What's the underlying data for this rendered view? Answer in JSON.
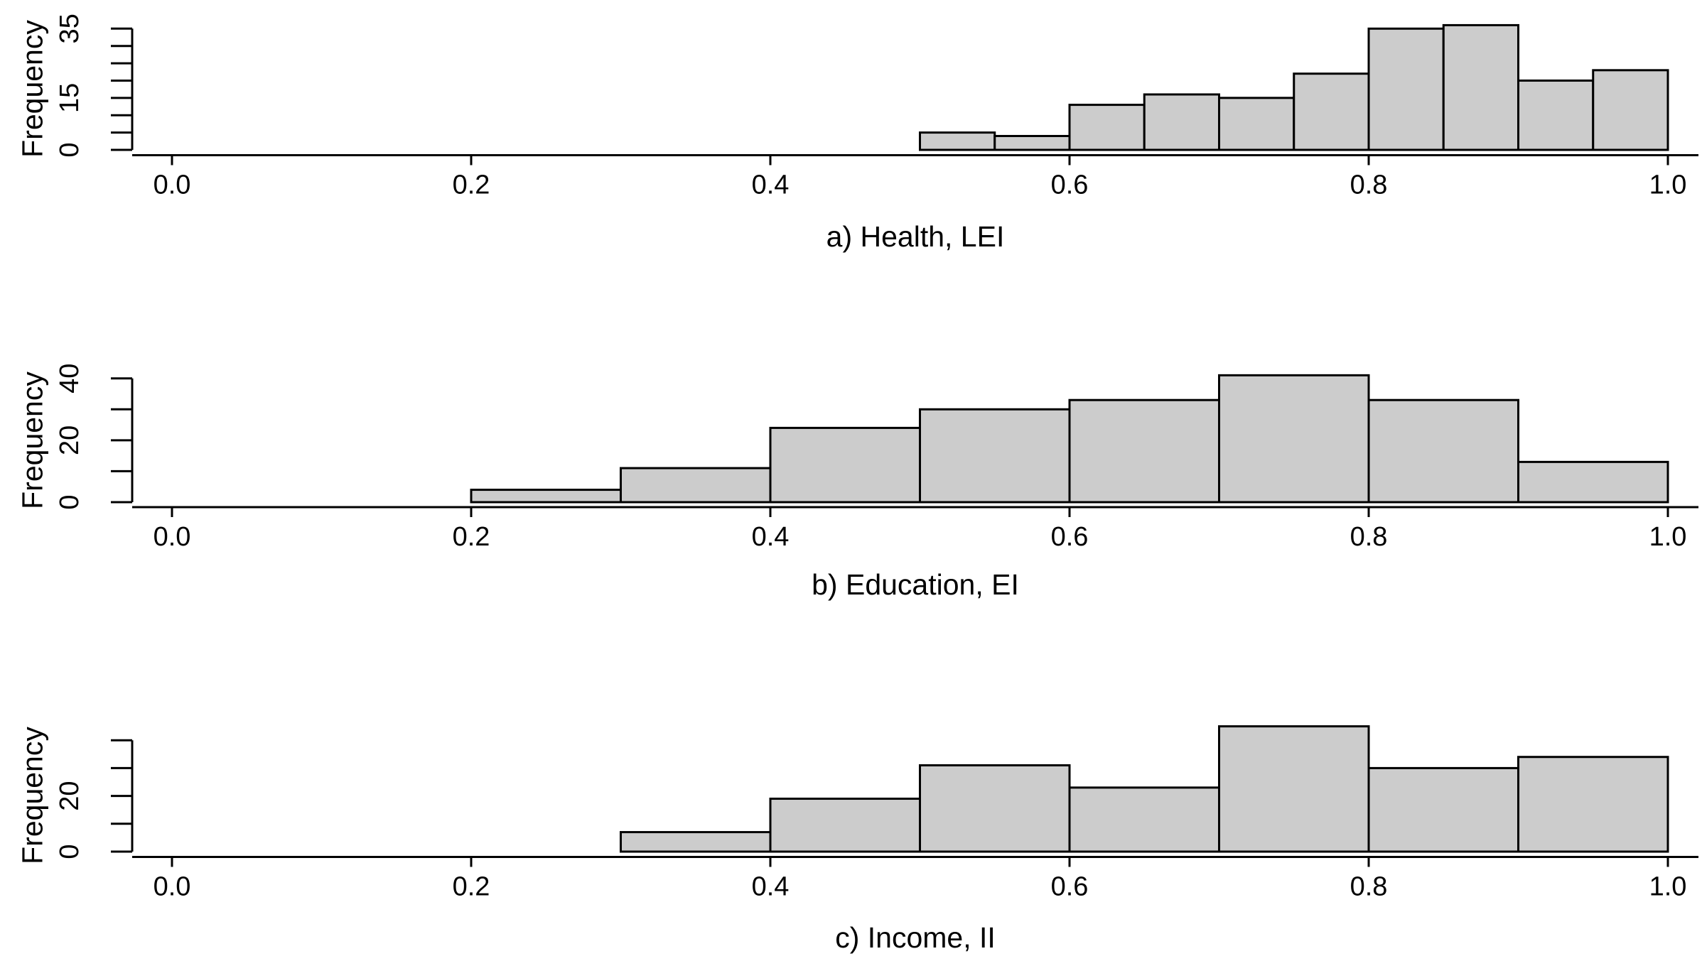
{
  "figure": {
    "background_color": "#ffffff",
    "bar_fill_color": "#cccccc",
    "bar_border_color": "#000000",
    "axis_color": "#000000"
  },
  "chart_data": [
    {
      "type": "bar",
      "subtype": "histogram",
      "title": "a) Health, LEI",
      "xlabel": "",
      "ylabel": "Frequency",
      "bin_start": 0.5,
      "bin_width": 0.05,
      "bin_edges": [
        0.5,
        0.55,
        0.6,
        0.65,
        0.7,
        0.75,
        0.8,
        0.85,
        0.9,
        0.95,
        1.0
      ],
      "values": [
        5,
        4,
        13,
        16,
        15,
        22,
        35,
        36,
        20,
        23
      ],
      "xlim": [
        0.0,
        1.0
      ],
      "ylim": [
        0,
        36
      ],
      "x_ticks": [
        0.0,
        0.2,
        0.4,
        0.6,
        0.8,
        1.0
      ],
      "x_tick_labels": [
        "0.0",
        "0.2",
        "0.4",
        "0.6",
        "0.8",
        "1.0"
      ],
      "y_ticks": [
        0,
        5,
        10,
        15,
        20,
        25,
        30,
        35
      ],
      "y_tick_labels": [
        "0",
        "",
        "",
        "15",
        "",
        "",
        "",
        "35"
      ],
      "grid": "off",
      "legend": "none"
    },
    {
      "type": "bar",
      "subtype": "histogram",
      "title": "b) Education, EI",
      "xlabel": "",
      "ylabel": "Frequency",
      "bin_start": 0.2,
      "bin_width": 0.1,
      "bin_edges": [
        0.2,
        0.3,
        0.4,
        0.5,
        0.6,
        0.7,
        0.8,
        0.9,
        1.0
      ],
      "values": [
        4,
        11,
        24,
        30,
        33,
        41,
        33,
        13
      ],
      "xlim": [
        0.0,
        1.0
      ],
      "ylim": [
        0,
        41
      ],
      "x_ticks": [
        0.0,
        0.2,
        0.4,
        0.6,
        0.8,
        1.0
      ],
      "x_tick_labels": [
        "0.0",
        "0.2",
        "0.4",
        "0.6",
        "0.8",
        "1.0"
      ],
      "y_ticks": [
        0,
        10,
        20,
        30,
        40
      ],
      "y_tick_labels": [
        "0",
        "",
        "20",
        "",
        "40"
      ],
      "grid": "off",
      "legend": "none"
    },
    {
      "type": "bar",
      "subtype": "histogram",
      "title": "c) Income, II",
      "xlabel": "",
      "ylabel": "Frequency",
      "bin_start": 0.3,
      "bin_width": 0.1,
      "bin_edges": [
        0.3,
        0.4,
        0.5,
        0.6,
        0.7,
        0.8,
        0.9,
        1.0
      ],
      "values": [
        7,
        19,
        31,
        23,
        45,
        30,
        34
      ],
      "xlim": [
        0.0,
        1.0
      ],
      "ylim": [
        0,
        45
      ],
      "x_ticks": [
        0.0,
        0.2,
        0.4,
        0.6,
        0.8,
        1.0
      ],
      "x_tick_labels": [
        "0.0",
        "0.2",
        "0.4",
        "0.6",
        "0.8",
        "1.0"
      ],
      "y_ticks": [
        0,
        10,
        20,
        30,
        40
      ],
      "y_tick_labels": [
        "0",
        "",
        "20",
        "",
        ""
      ],
      "grid": "off",
      "legend": "none"
    }
  ]
}
